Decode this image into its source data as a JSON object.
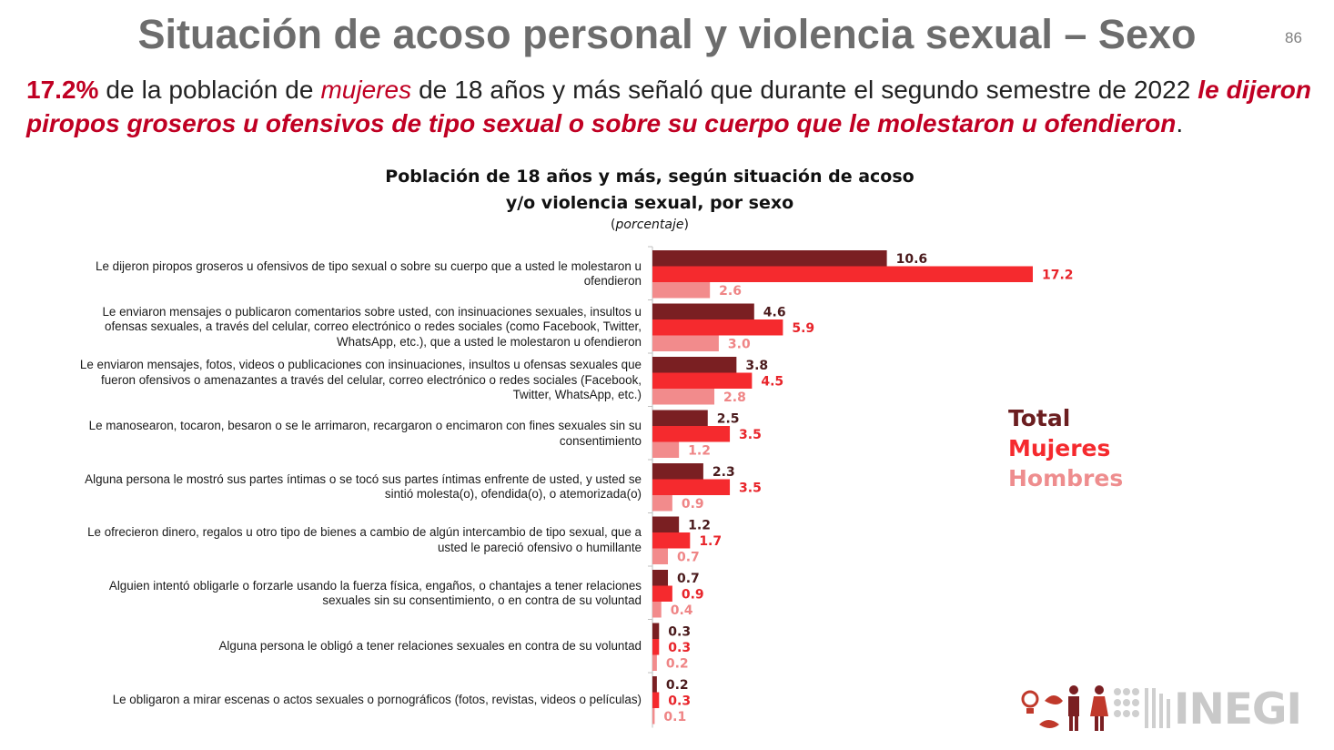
{
  "slide": {
    "title": "Situación de acoso personal y violencia sexual – Sexo",
    "page_number": "86"
  },
  "headline": {
    "percent": "17.2%",
    "text1": " de la población de ",
    "women": "mujeres",
    "text2": " de 18 años y más señaló que durante el segundo semestre de 2022 ",
    "emphasis": "le dijeron piropos groseros u ofensivos de tipo sexual o sobre su cuerpo que le molestaron u ofendieron",
    "end": "."
  },
  "logo": {
    "text": "INEGI",
    "icon": "inegi-logo-icon"
  },
  "colors": {
    "total": "#7a1f22",
    "mujeres": "#f52a2e",
    "hombres": "#f28b8c"
  },
  "chart_data": {
    "type": "bar",
    "orientation": "horizontal",
    "title": "Población de 18 años y más, según situación de acoso y/o violencia sexual, por sexo",
    "subtitle": "porcentaje",
    "categories": [
      "Le dijeron piropos groseros u ofensivos de tipo sexual o sobre su cuerpo que a usted le molestaron u ofendieron",
      "Le enviaron mensajes o publicaron comentarios sobre usted, con insinuaciones sexuales, insultos u ofensas sexuales, a través del celular, correo electrónico o redes sociales (como Facebook, Twitter, WhatsApp, etc.), que a usted le molestaron u ofendieron",
      "Le enviaron mensajes, fotos, videos o publicaciones con insinuaciones, insultos u ofensas sexuales que fueron ofensivos o amenazantes a través del celular, correo electrónico o redes sociales (Facebook, Twitter, WhatsApp, etc.)",
      "Le manosearon, tocaron, besaron o se le arrimaron, recargaron o encimaron con fines sexuales sin su consentimiento",
      "Alguna persona le mostró sus partes íntimas o se tocó sus partes íntimas enfrente de usted, y usted se sintió molesta(o), ofendida(o), o atemorizada(o)",
      "Le ofrecieron dinero, regalos u otro tipo de bienes a cambio de algún intercambio de tipo sexual, que a usted le pareció ofensivo o humillante",
      "Alguien intentó obligarle o forzarle usando la fuerza física, engaños, o chantajes a tener relaciones sexuales sin su consentimiento, o en contra de su voluntad",
      "Alguna persona le obligó a tener relaciones sexuales en contra de su voluntad",
      "Le obligaron a mirar escenas o actos sexuales o pornográficos (fotos, revistas, videos o películas)"
    ],
    "series": [
      {
        "name": "Total",
        "color": "#7a1f22",
        "values": [
          10.6,
          4.6,
          3.8,
          2.5,
          2.3,
          1.2,
          0.7,
          0.3,
          0.2
        ]
      },
      {
        "name": "Mujeres",
        "color": "#f52a2e",
        "values": [
          17.2,
          5.9,
          4.5,
          3.5,
          3.5,
          1.7,
          0.9,
          0.3,
          0.3
        ]
      },
      {
        "name": "Hombres",
        "color": "#f28b8c",
        "values": [
          2.6,
          3.0,
          2.8,
          1.2,
          0.9,
          0.7,
          0.4,
          0.2,
          0.1
        ]
      }
    ],
    "legend_position": "right",
    "grid": false
  }
}
